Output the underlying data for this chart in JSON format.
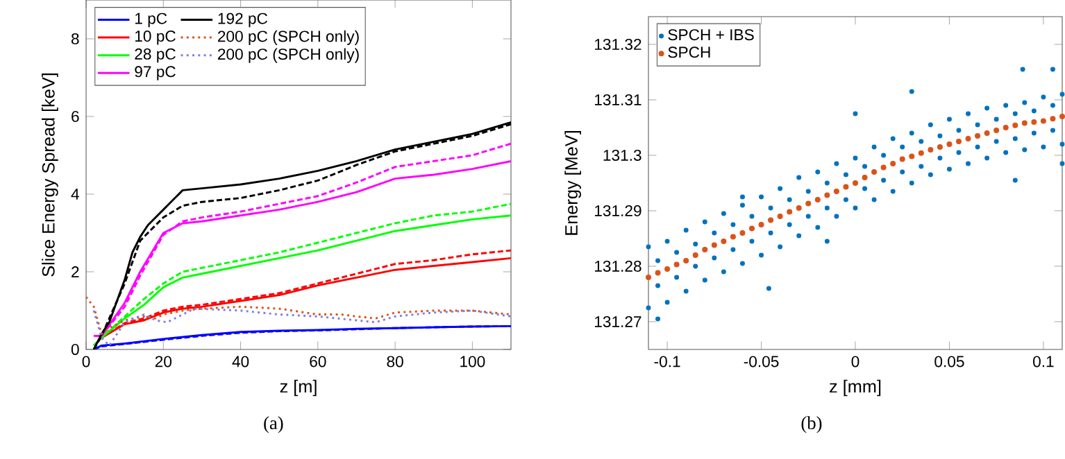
{
  "chart_data": [
    {
      "type": "line",
      "xlabel": "z [m]",
      "ylabel": "Slice Energy Spread [keV]",
      "xlim": [
        0,
        110
      ],
      "ylim": [
        0,
        9
      ],
      "xticks": [
        0,
        20,
        40,
        60,
        80,
        100
      ],
      "yticks": [
        0,
        2,
        4,
        6,
        8
      ],
      "legend": "top left",
      "marker": "none",
      "annotations": [
        "(a)"
      ],
      "series": [
        {
          "name": "1 pC",
          "color": "#0000ff",
          "line_style": "solid",
          "x": [
            2,
            4,
            10,
            20,
            30,
            40,
            50,
            60,
            70,
            80,
            90,
            100,
            110
          ],
          "values": [
            0,
            0.1,
            0.15,
            0.27,
            0.37,
            0.45,
            0.48,
            0.5,
            0.53,
            0.55,
            0.57,
            0.59,
            0.6
          ]
        },
        {
          "color": "#0000ff",
          "line_style": "dashed",
          "x": [
            2,
            4,
            10,
            20,
            30,
            40,
            50,
            60,
            70,
            80,
            90,
            100,
            110
          ],
          "values": [
            0,
            0.08,
            0.14,
            0.25,
            0.35,
            0.43,
            0.47,
            0.49,
            0.52,
            0.55,
            0.57,
            0.59,
            0.6
          ]
        },
        {
          "name": "10 pC",
          "color": "#ff0000",
          "line_style": "solid",
          "x": [
            2,
            4,
            10,
            15,
            20,
            25,
            30,
            40,
            50,
            60,
            70,
            80,
            90,
            100,
            110
          ],
          "values": [
            0.1,
            0.3,
            0.65,
            0.75,
            0.95,
            1.05,
            1.1,
            1.25,
            1.4,
            1.65,
            1.85,
            2.05,
            2.15,
            2.25,
            2.35
          ]
        },
        {
          "color": "#ff0000",
          "line_style": "dashed",
          "x": [
            4,
            10,
            15,
            20,
            25,
            30,
            40,
            50,
            60,
            70,
            80,
            90,
            100,
            110
          ],
          "values": [
            0.3,
            0.68,
            0.8,
            1.0,
            1.1,
            1.15,
            1.3,
            1.45,
            1.7,
            1.95,
            2.2,
            2.3,
            2.45,
            2.55
          ]
        },
        {
          "name": "28 pC",
          "color": "#00ff00",
          "line_style": "solid",
          "x": [
            4,
            10,
            15,
            20,
            25,
            30,
            40,
            50,
            60,
            70,
            80,
            90,
            100,
            110
          ],
          "values": [
            0.3,
            0.8,
            1.15,
            1.6,
            1.85,
            1.95,
            2.15,
            2.35,
            2.55,
            2.8,
            3.05,
            3.2,
            3.35,
            3.45
          ]
        },
        {
          "color": "#00ff00",
          "line_style": "dashed",
          "x": [
            2,
            4,
            10,
            15,
            20,
            25,
            30,
            40,
            50,
            60,
            70,
            80,
            90,
            100,
            110
          ],
          "values": [
            0.1,
            0.3,
            0.85,
            1.3,
            1.7,
            2.0,
            2.1,
            2.3,
            2.5,
            2.75,
            3.0,
            3.25,
            3.45,
            3.55,
            3.75
          ]
        },
        {
          "name": "97 pC",
          "color": "#ff00ff",
          "line_style": "solid",
          "x": [
            2,
            4,
            10,
            14,
            20,
            25,
            30,
            40,
            50,
            60,
            70,
            80,
            90,
            100,
            110
          ],
          "values": [
            0.35,
            0.35,
            1.2,
            2.0,
            3.0,
            3.25,
            3.3,
            3.45,
            3.6,
            3.8,
            4.05,
            4.4,
            4.5,
            4.65,
            4.85
          ]
        },
        {
          "color": "#ff00ff",
          "line_style": "dashed",
          "x": [
            2,
            4,
            10,
            14,
            20,
            25,
            30,
            40,
            50,
            60,
            70,
            80,
            90,
            100,
            110
          ],
          "values": [
            0.35,
            0.35,
            1.1,
            1.9,
            2.95,
            3.3,
            3.4,
            3.55,
            3.75,
            3.95,
            4.3,
            4.7,
            4.85,
            5.0,
            5.3
          ]
        },
        {
          "name": "192 pC",
          "color": "#000000",
          "line_style": "solid",
          "x": [
            2,
            4,
            6,
            10,
            12,
            14,
            16,
            20,
            25,
            30,
            40,
            50,
            60,
            70,
            80,
            90,
            100,
            110
          ],
          "values": [
            0,
            0.4,
            0.7,
            1.8,
            2.5,
            2.9,
            3.2,
            3.6,
            4.1,
            4.15,
            4.25,
            4.4,
            4.6,
            4.85,
            5.15,
            5.35,
            5.55,
            5.85
          ]
        },
        {
          "color": "#000000",
          "line_style": "dashed",
          "x": [
            2,
            4,
            10,
            14,
            20,
            25,
            30,
            40,
            50,
            60,
            70,
            80,
            90,
            100,
            110
          ],
          "values": [
            0,
            0.35,
            1.7,
            2.8,
            3.4,
            3.7,
            3.8,
            3.9,
            4.1,
            4.35,
            4.75,
            5.1,
            5.3,
            5.5,
            5.8
          ]
        },
        {
          "name": "200 pC (SPCH only)",
          "color": "#d95319",
          "line_style": "dotted",
          "x": [
            0,
            2,
            4,
            6,
            10,
            15,
            18,
            20,
            25,
            30,
            40,
            50,
            60,
            66,
            70,
            75,
            80,
            90,
            100,
            110
          ],
          "values": [
            1.35,
            1.1,
            0.4,
            0.55,
            0.75,
            0.85,
            0.8,
            0.9,
            1.0,
            1.05,
            1.1,
            1.05,
            0.9,
            0.9,
            0.85,
            0.8,
            0.95,
            1.0,
            1.0,
            0.9
          ]
        },
        {
          "name": "200 pC (SPCH only)",
          "color": "#7e7ee0",
          "line_style": "dotted",
          "x": [
            2,
            4,
            6,
            10,
            15,
            18,
            21,
            25,
            28,
            40,
            50,
            60,
            70,
            75,
            80,
            90,
            100,
            110
          ],
          "values": [
            1.0,
            0.3,
            0.1,
            0.7,
            0.9,
            0.75,
            0.7,
            0.9,
            1.05,
            1.0,
            0.9,
            0.85,
            0.75,
            0.7,
            0.85,
            0.95,
            1.0,
            0.85
          ]
        }
      ]
    },
    {
      "type": "scatter",
      "xlabel": "z [mm]",
      "ylabel": "Energy [MeV]",
      "xlim": [
        -0.11,
        0.11
      ],
      "ylim": [
        131.265,
        131.325
      ],
      "xticks": [
        -0.1,
        -0.05,
        0,
        0.05,
        0.1
      ],
      "yticks": [
        131.27,
        131.28,
        131.29,
        131.3,
        131.31,
        131.32
      ],
      "legend": "top left",
      "marker": "circle",
      "annotations": [
        "(b)"
      ],
      "series": [
        {
          "name": "SPCH + IBS",
          "color": "#0072bd",
          "x": [
            -0.11,
            -0.11,
            -0.1,
            -0.1,
            -0.09,
            -0.09,
            -0.08,
            -0.08,
            -0.07,
            -0.07,
            -0.06,
            -0.06,
            -0.05,
            -0.05,
            -0.04,
            -0.04,
            -0.03,
            -0.03,
            -0.02,
            -0.02,
            -0.01,
            -0.01,
            0,
            0,
            0.01,
            0.01,
            0.02,
            0.02,
            0.03,
            0.03,
            0.04,
            0.04,
            0.05,
            0.05,
            0.06,
            0.06,
            0.07,
            0.07,
            0.08,
            0.08,
            0.09,
            0.09,
            0.1,
            0.1,
            0.11,
            0.11,
            -0.105,
            -0.105,
            -0.095,
            -0.095,
            -0.085,
            -0.085,
            -0.075,
            -0.075,
            -0.065,
            -0.065,
            -0.055,
            -0.055,
            -0.045,
            -0.045,
            -0.035,
            -0.035,
            -0.025,
            -0.025,
            -0.015,
            -0.015,
            -0.005,
            -0.005,
            0.005,
            0.005,
            0.015,
            0.015,
            0.025,
            0.025,
            0.035,
            0.035,
            0.045,
            0.045,
            0.055,
            0.055,
            0.065,
            0.065,
            0.075,
            0.075,
            0.085,
            0.085,
            0.095,
            0.095,
            0.105,
            0.105,
            -0.105,
            -0.046,
            -0.06,
            0,
            0.03,
            0.089,
            0.105,
            0.11,
            0.085,
            -0.015
          ],
          "values": [
            131.2835,
            131.2725,
            131.2845,
            131.2735,
            131.2865,
            131.2755,
            131.288,
            131.2775,
            131.2895,
            131.279,
            131.291,
            131.2805,
            131.2925,
            131.282,
            131.294,
            131.2835,
            131.296,
            131.2855,
            131.297,
            131.287,
            131.2985,
            131.289,
            131.2995,
            131.2905,
            131.3015,
            131.292,
            131.303,
            131.2935,
            131.304,
            131.295,
            131.3055,
            131.2965,
            131.3065,
            131.2975,
            131.3075,
            131.2985,
            131.3085,
            131.2995,
            131.309,
            131.3005,
            131.3095,
            131.301,
            131.3105,
            131.3015,
            131.311,
            131.302,
            131.281,
            131.2765,
            131.2825,
            131.278,
            131.284,
            131.28,
            131.286,
            131.2815,
            131.2875,
            131.283,
            131.289,
            131.2845,
            131.2905,
            131.286,
            131.292,
            131.2875,
            131.2935,
            131.289,
            131.295,
            131.2905,
            131.2965,
            131.292,
            131.298,
            131.294,
            131.3,
            131.2955,
            131.3015,
            131.297,
            131.3025,
            131.298,
            131.3035,
            131.2995,
            131.3045,
            131.3005,
            131.3055,
            131.3015,
            131.3065,
            131.3025,
            131.3075,
            131.303,
            131.308,
            131.304,
            131.309,
            131.3045,
            131.2705,
            131.276,
            131.2925,
            131.3075,
            131.3115,
            131.3155,
            131.3155,
            131.2985,
            131.2955,
            131.2845
          ]
        },
        {
          "name": "SPCH",
          "color": "#d95319",
          "x": [
            -0.11,
            -0.105,
            -0.1,
            -0.095,
            -0.09,
            -0.085,
            -0.08,
            -0.075,
            -0.07,
            -0.065,
            -0.06,
            -0.055,
            -0.05,
            -0.045,
            -0.04,
            -0.035,
            -0.03,
            -0.025,
            -0.02,
            -0.015,
            -0.01,
            -0.005,
            0,
            0.005,
            0.01,
            0.015,
            0.02,
            0.025,
            0.03,
            0.035,
            0.04,
            0.045,
            0.05,
            0.055,
            0.06,
            0.065,
            0.07,
            0.075,
            0.08,
            0.085,
            0.09,
            0.095,
            0.1,
            0.105,
            0.11
          ],
          "values": [
            131.278,
            131.2788,
            131.2795,
            131.2803,
            131.281,
            131.282,
            131.283,
            131.2838,
            131.2845,
            131.2853,
            131.286,
            131.2868,
            131.2875,
            131.2883,
            131.289,
            131.2898,
            131.2905,
            131.2913,
            131.292,
            131.2928,
            131.2935,
            131.2943,
            131.295,
            131.296,
            131.297,
            131.2978,
            131.2985,
            131.2993,
            131.2998,
            131.3004,
            131.301,
            131.3015,
            131.302,
            131.3025,
            131.303,
            131.3035,
            131.304,
            131.3045,
            131.305,
            131.3054,
            131.3058,
            131.306,
            131.3062,
            131.3066,
            131.307
          ]
        }
      ]
    }
  ]
}
